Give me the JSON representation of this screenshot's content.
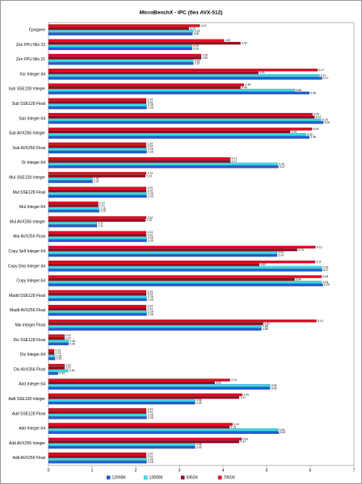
{
  "chart_data": {
    "type": "barh",
    "title": "MicroBenchX - IPC (без AVX-512)",
    "categories": [
      "Среднее",
      "Zen FPU Mix 22",
      "Zen FPU Mix 21",
      "Xor Integer 64",
      "Sub SSE128 Integer",
      "Sub SSE128 Float",
      "Sub Integer 64",
      "Sub AVX256 Integer",
      "Sub AVX256 Float",
      "Or Integer 64",
      "Mul SSE128 Integer",
      "Mul SSE128 Float",
      "Mul Integer 64",
      "Mul AVX256 Integer",
      "Mul AVX256 Float",
      "Copy Self Integer 64",
      "Copy Dep Integer 64",
      "Copy Integer 64",
      "Madd SSE128 Float",
      "Madd AVX256 Float",
      "Mix Integer Float",
      "Div SSE128 Float",
      "Div Integer 64",
      "Div AVX256 Float",
      "And Integer 64",
      "Add SSE128 Integer",
      "Add SSE128 Float",
      "Add Integer 64",
      "Add AVX256 Integer",
      "Add AVX256 Float"
    ],
    "series": [
      {
        "name": "12900K",
        "color": "#1f5fd6",
        "values": [
          3.3,
          3.29,
          3.32,
          6.27,
          5.98,
          2.25,
          6.3,
          5.98,
          2.25,
          5.27,
          1.01,
          2.25,
          1.16,
          1.11,
          2.25,
          5.24,
          6.27,
          6.29,
          2.25,
          2.25,
          4.88,
          0.46,
          0.15,
          0.22,
          5.08,
          3.36,
          2.25,
          5.28,
          3.36,
          2.25
        ],
        "value_labels": [
          "3.30",
          "3.29",
          "3.32",
          "6.27",
          "5.98",
          "2.25",
          "6.30",
          "5.98",
          "2.25",
          "5.27",
          "1.01",
          "2.25",
          "1.16",
          "1.11",
          "2.25",
          "5.24",
          "6.27",
          "6.29",
          "2.25",
          "2.25",
          "4.88",
          "0.46",
          "0.15",
          "0.22",
          "5.08",
          "3.36",
          "2.25",
          "5.28",
          "3.36",
          "2.25"
        ]
      },
      {
        "name": "13900K",
        "color": "#33dded",
        "values": [
          3.32,
          3.29,
          3.32,
          6.21,
          5.65,
          2.25,
          6.25,
          5.9,
          2.25,
          5.25,
          1.01,
          2.25,
          1.16,
          1.11,
          2.25,
          5.24,
          6.26,
          6.26,
          2.25,
          2.25,
          4.88,
          0.46,
          0.15,
          0.45,
          5.08,
          3.36,
          2.25,
          5.26,
          3.36,
          2.25
        ],
        "value_labels": [
          "3.32",
          "3.29",
          "3.32",
          "6.21",
          "5.65",
          "2.25",
          "6.25",
          "5.90",
          "2.25",
          "5.25",
          "1.01",
          "2.25",
          "1.16",
          "1.11",
          "2.25",
          "5.24",
          "6.26",
          "6.26",
          "2.25",
          "2.25",
          "4.88",
          "0.46",
          "0.15",
          "0.45",
          "5.08",
          "3.36",
          "2.25",
          "5.26",
          "3.36",
          "2.25"
        ]
      },
      {
        "name": "5950X",
        "color": "#a00018",
        "values": [
          3.22,
          4.4,
          3.5,
          4.81,
          4.4,
          2.24,
          6.1,
          5.54,
          2.24,
          4.17,
          2.22,
          2.24,
          1.14,
          2.22,
          2.24,
          5.7,
          4.83,
          5.64,
          2.24,
          2.24,
          4.92,
          0.37,
          0.13,
          0.37,
          3.81,
          4.37,
          2.24,
          4.15,
          4.37,
          2.24
        ],
        "value_labels": [
          "3.22",
          "4.40",
          "3.50",
          "4.81",
          "4.40",
          "2.24",
          "6.10",
          "5.54",
          "2.24",
          "4.17",
          "2.22",
          "2.24",
          "1.14",
          "2.22",
          "2.24",
          "5.70",
          "4.83",
          "5.64",
          "2.24",
          "2.24",
          "4.92",
          "0.37",
          "0.13",
          "0.37",
          "3.81",
          "4.37",
          "2.24",
          "4.15",
          "4.37",
          "2.24"
        ]
      },
      {
        "name": "7950X",
        "color": "#e8001c",
        "values": [
          3.47,
          4.02,
          3.5,
          6.17,
          4.48,
          2.24,
          6.05,
          6.04,
          2.24,
          4.17,
          2.24,
          2.24,
          1.14,
          2.24,
          2.24,
          6.12,
          6.11,
          6.26,
          2.24,
          2.24,
          6.14,
          0.37,
          0.13,
          0.37,
          4.16,
          4.44,
          2.24,
          4.22,
          4.43,
          2.24
        ],
        "value_labels": [
          "3.47",
          "4.02",
          "3.50",
          "6.17",
          "4.48",
          "2.24",
          "6.05",
          "6.04",
          "2.24",
          "4.17",
          "2.24",
          "2.24",
          "1.14",
          "2.24",
          "2.24",
          "6.12",
          "6.11",
          "6.26",
          "2.24",
          "2.24",
          "6.14",
          "0.37",
          "0.13",
          "0.37",
          "4.16",
          "4.44",
          "2.24",
          "4.22",
          "4.43",
          "2.24"
        ]
      }
    ],
    "xlim": [
      0,
      7
    ],
    "xticks": [
      0,
      1,
      2,
      3,
      4,
      5,
      6,
      7
    ],
    "grid": false,
    "legend": "bottom"
  }
}
